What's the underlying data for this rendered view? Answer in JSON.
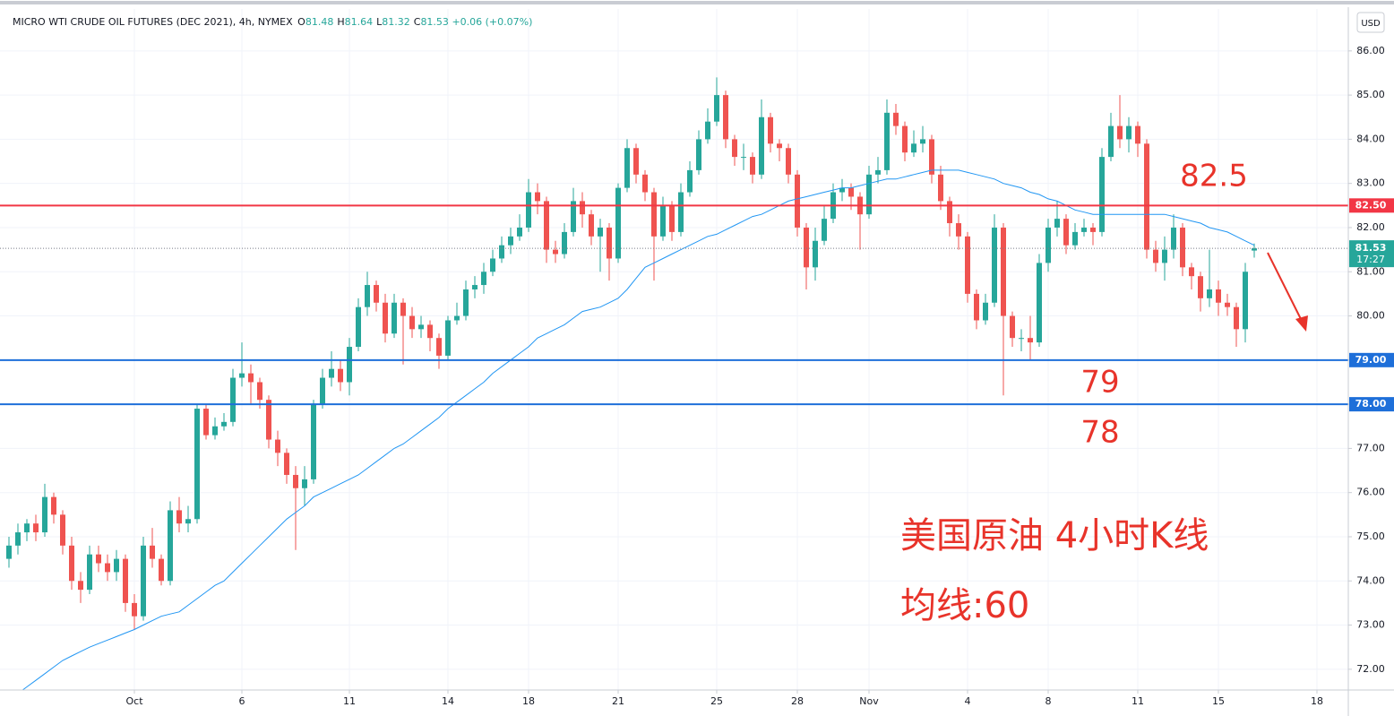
{
  "chart_data": {
    "type": "candlestick",
    "title": "MICRO WTI CRUDE OIL FUTURES (DEC 2021), 4h, NYMEX",
    "ohlc_header": [
      {
        "label": "O",
        "value": "81.48"
      },
      {
        "label": "H",
        "value": "81.64"
      },
      {
        "label": "L",
        "value": "81.32"
      },
      {
        "label": "C",
        "value": "81.53"
      }
    ],
    "change": "+0.06 (+0.07%)",
    "currency": "USD",
    "up_color": "#26a69a",
    "down_color": "#ef5350",
    "open": [
      74.5,
      74.8,
      75.1,
      75.3,
      75.1,
      75.9,
      75.5,
      74.8,
      74.0,
      73.8,
      74.6,
      74.4,
      74.2,
      74.5,
      73.5,
      73.2,
      74.8,
      74.5,
      74.0,
      75.6,
      75.3,
      75.4,
      77.9,
      77.3,
      77.5,
      77.6,
      78.6,
      78.7,
      78.5,
      78.1,
      77.2,
      76.9,
      76.4,
      76.1,
      76.3,
      78.0,
      78.6,
      78.8,
      78.5,
      79.3,
      80.2,
      80.7,
      80.3,
      79.6,
      80.3,
      80.0,
      79.7,
      79.8,
      79.5,
      79.1,
      79.9,
      80.0,
      80.6,
      80.7,
      81.0,
      81.3,
      81.6,
      81.8,
      82.0,
      82.8,
      82.6,
      81.5,
      81.4,
      81.9,
      82.6,
      82.3,
      81.8,
      82.0,
      81.3,
      82.9,
      83.8,
      83.2,
      82.8,
      81.8,
      82.5,
      81.9,
      82.8,
      83.3,
      84.0,
      84.4,
      85.0,
      84.0,
      83.6,
      83.6,
      83.2,
      84.5,
      83.9,
      83.8,
      83.2,
      82.0,
      81.1,
      81.7,
      82.2,
      82.8,
      82.9,
      82.7,
      82.3,
      83.2,
      83.3,
      84.6,
      84.3,
      83.7,
      83.9,
      84.0,
      83.2,
      82.6,
      82.1,
      81.8,
      80.5,
      79.9,
      80.3,
      82.0,
      80.0,
      79.5,
      79.5,
      79.4,
      81.2,
      82.0,
      82.2,
      81.6,
      81.9,
      82.0,
      81.9,
      83.6,
      84.3,
      84.0,
      84.3,
      83.9,
      81.5,
      81.2,
      81.5,
      82.0,
      81.1,
      80.9,
      80.4,
      80.6,
      80.3,
      80.2,
      79.7,
      81.48
    ],
    "close": [
      74.8,
      75.1,
      75.3,
      75.1,
      75.9,
      75.5,
      74.8,
      74.0,
      73.8,
      74.6,
      74.4,
      74.2,
      74.5,
      73.5,
      73.2,
      74.8,
      74.5,
      74.0,
      75.6,
      75.3,
      75.4,
      77.9,
      77.3,
      77.5,
      77.6,
      78.6,
      78.7,
      78.5,
      78.1,
      77.2,
      76.9,
      76.4,
      76.1,
      76.3,
      78.0,
      78.6,
      78.8,
      78.5,
      79.3,
      80.2,
      80.7,
      80.3,
      79.6,
      80.3,
      80.0,
      79.7,
      79.8,
      79.5,
      79.1,
      79.9,
      80.0,
      80.6,
      80.7,
      81.0,
      81.3,
      81.6,
      81.8,
      82.0,
      82.8,
      82.6,
      81.5,
      81.4,
      81.9,
      82.6,
      82.3,
      81.8,
      82.0,
      81.3,
      82.9,
      83.8,
      83.2,
      82.8,
      81.8,
      82.5,
      81.9,
      82.8,
      83.3,
      84.0,
      84.4,
      85.0,
      84.0,
      83.6,
      83.6,
      83.2,
      84.5,
      83.9,
      83.8,
      83.2,
      82.0,
      81.1,
      81.7,
      82.2,
      82.8,
      82.9,
      82.7,
      82.3,
      83.2,
      83.3,
      84.6,
      84.3,
      83.7,
      83.9,
      84.0,
      83.2,
      82.6,
      82.1,
      81.8,
      80.5,
      79.9,
      80.3,
      82.0,
      80.0,
      79.5,
      79.5,
      79.4,
      81.2,
      82.0,
      82.2,
      81.6,
      81.9,
      82.0,
      81.9,
      83.6,
      84.3,
      84.0,
      84.3,
      83.9,
      81.5,
      81.2,
      81.5,
      82.0,
      81.1,
      80.9,
      80.4,
      80.6,
      80.3,
      80.2,
      79.7,
      81.0,
      81.53
    ],
    "high": [
      75.0,
      75.3,
      75.4,
      75.5,
      76.2,
      76.0,
      75.6,
      75.0,
      74.2,
      74.8,
      74.8,
      74.6,
      74.7,
      74.6,
      73.7,
      75.0,
      75.2,
      74.6,
      75.8,
      75.9,
      75.7,
      78.0,
      78.0,
      77.7,
      77.8,
      78.8,
      79.4,
      78.9,
      78.6,
      78.2,
      77.4,
      77.0,
      76.6,
      76.6,
      78.1,
      78.8,
      79.2,
      79.0,
      79.5,
      80.4,
      81.0,
      80.8,
      80.5,
      80.5,
      80.4,
      80.2,
      80.0,
      79.9,
      79.6,
      80.0,
      80.3,
      80.8,
      80.9,
      81.2,
      81.5,
      81.8,
      82.0,
      82.3,
      83.1,
      83.0,
      82.7,
      81.7,
      82.1,
      82.9,
      82.8,
      82.4,
      82.2,
      82.1,
      83.0,
      84.0,
      83.9,
      83.3,
      82.9,
      82.7,
      82.6,
      83.0,
      83.5,
      84.2,
      84.7,
      85.4,
      85.1,
      84.1,
      83.9,
      83.7,
      84.9,
      84.6,
      84.0,
      83.9,
      83.3,
      82.1,
      82.0,
      82.5,
      83.0,
      83.1,
      83.0,
      82.8,
      83.4,
      83.6,
      84.9,
      84.8,
      84.4,
      84.2,
      84.3,
      84.1,
      83.4,
      82.7,
      82.3,
      81.9,
      80.6,
      80.5,
      82.3,
      82.1,
      80.1,
      79.7,
      80.0,
      81.4,
      82.2,
      82.6,
      82.3,
      82.1,
      82.2,
      82.1,
      83.8,
      84.6,
      85.0,
      84.5,
      84.4,
      84.0,
      81.7,
      81.8,
      82.3,
      82.1,
      81.2,
      81.0,
      81.5,
      80.8,
      80.5,
      80.3,
      81.2,
      81.64
    ],
    "low": [
      74.3,
      74.6,
      74.9,
      74.9,
      75.0,
      75.3,
      74.6,
      73.8,
      73.5,
      73.7,
      74.2,
      74.0,
      74.0,
      73.3,
      72.9,
      73.1,
      74.3,
      73.9,
      73.9,
      75.1,
      75.1,
      75.3,
      77.2,
      77.2,
      77.4,
      77.5,
      78.4,
      78.0,
      77.9,
      77.0,
      76.6,
      76.2,
      74.7,
      75.7,
      76.2,
      77.9,
      78.4,
      78.3,
      78.2,
      79.2,
      80.0,
      80.1,
      79.4,
      79.5,
      78.9,
      79.5,
      79.5,
      79.2,
      78.8,
      79.0,
      79.8,
      79.9,
      80.4,
      80.5,
      80.9,
      81.2,
      81.4,
      81.7,
      81.9,
      82.3,
      81.2,
      81.2,
      81.3,
      81.8,
      82.0,
      81.6,
      81.0,
      80.8,
      81.2,
      82.8,
      83.0,
      82.6,
      80.8,
      81.7,
      81.7,
      81.8,
      82.7,
      83.2,
      83.9,
      84.3,
      83.8,
      83.4,
      83.3,
      83.0,
      83.1,
      83.7,
      83.5,
      83.0,
      81.8,
      80.6,
      80.8,
      81.6,
      82.1,
      82.6,
      82.4,
      81.5,
      82.2,
      83.0,
      83.2,
      84.1,
      83.5,
      83.6,
      83.7,
      83.0,
      82.4,
      81.8,
      81.5,
      80.3,
      79.7,
      79.8,
      80.2,
      78.2,
      79.3,
      79.2,
      79.0,
      79.3,
      81.0,
      81.8,
      81.4,
      81.5,
      81.8,
      81.6,
      81.8,
      83.5,
      83.8,
      83.7,
      83.6,
      81.3,
      81.0,
      80.8,
      81.3,
      80.9,
      80.6,
      80.1,
      80.2,
      80.0,
      80.0,
      79.3,
      79.4,
      81.32
    ],
    "ma_values": [
      71.3,
      71.45,
      71.6,
      71.75,
      71.9,
      72.05,
      72.2,
      72.3,
      72.4,
      72.5,
      72.58,
      72.66,
      72.74,
      72.82,
      72.9,
      73.0,
      73.1,
      73.2,
      73.25,
      73.3,
      73.45,
      73.6,
      73.75,
      73.9,
      74.0,
      74.2,
      74.4,
      74.6,
      74.8,
      75.0,
      75.2,
      75.4,
      75.55,
      75.7,
      75.9,
      76.0,
      76.1,
      76.2,
      76.3,
      76.4,
      76.55,
      76.7,
      76.85,
      77.0,
      77.1,
      77.25,
      77.4,
      77.55,
      77.7,
      77.9,
      78.05,
      78.2,
      78.35,
      78.5,
      78.7,
      78.85,
      79.0,
      79.15,
      79.3,
      79.5,
      79.6,
      79.7,
      79.8,
      79.95,
      80.1,
      80.15,
      80.2,
      80.3,
      80.4,
      80.6,
      80.85,
      81.1,
      81.2,
      81.3,
      81.4,
      81.5,
      81.6,
      81.7,
      81.8,
      81.85,
      81.95,
      82.05,
      82.15,
      82.25,
      82.3,
      82.4,
      82.5,
      82.6,
      82.65,
      82.7,
      82.75,
      82.8,
      82.85,
      82.9,
      82.9,
      82.95,
      83.0,
      83.05,
      83.1,
      83.1,
      83.15,
      83.2,
      83.25,
      83.3,
      83.3,
      83.3,
      83.3,
      83.25,
      83.2,
      83.15,
      83.1,
      83.0,
      82.95,
      82.9,
      82.8,
      82.75,
      82.65,
      82.6,
      82.5,
      82.4,
      82.35,
      82.3,
      82.3,
      82.3,
      82.3,
      82.3,
      82.3,
      82.3,
      82.3,
      82.3,
      82.25,
      82.2,
      82.15,
      82.1,
      82.0,
      81.95,
      81.9,
      81.8,
      81.7,
      81.6
    ],
    "ma_color": "#2196f3",
    "xlim": [
      -1,
      149.5
    ],
    "xticks": [
      {
        "value": 14,
        "label": "Oct"
      },
      {
        "value": 26,
        "label": "6"
      },
      {
        "value": 38,
        "label": "11"
      },
      {
        "value": 49,
        "label": "14"
      },
      {
        "value": 58,
        "label": "18"
      },
      {
        "value": 68,
        "label": "21"
      },
      {
        "value": 79,
        "label": "25"
      },
      {
        "value": 88,
        "label": "28"
      },
      {
        "value": 96,
        "label": "Nov"
      },
      {
        "value": 107,
        "label": "4"
      },
      {
        "value": 116,
        "label": "8"
      },
      {
        "value": 126,
        "label": "11"
      },
      {
        "value": 135,
        "label": "15"
      },
      {
        "value": 146,
        "label": "18"
      }
    ],
    "ylim": [
      71.53,
      86.95
    ],
    "yticks": [
      {
        "value": 72,
        "label": "72.00"
      },
      {
        "value": 73,
        "label": "73.00"
      },
      {
        "value": 74,
        "label": "74.00"
      },
      {
        "value": 75,
        "label": "75.00"
      },
      {
        "value": 76,
        "label": "76.00"
      },
      {
        "value": 77,
        "label": "77.00"
      },
      {
        "value": 78,
        "label": "78.00"
      },
      {
        "value": 79,
        "label": "79.00"
      },
      {
        "value": 80,
        "label": "80.00"
      },
      {
        "value": 81,
        "label": "81.00"
      },
      {
        "value": 82,
        "label": "82.00"
      },
      {
        "value": 83,
        "label": "83.00"
      },
      {
        "value": 84,
        "label": "84.00"
      },
      {
        "value": 85,
        "label": "85.00"
      },
      {
        "value": 86,
        "label": "86.00"
      }
    ],
    "grid": true,
    "hlines": [
      {
        "value": 82.5,
        "label": "82.50",
        "color": "#f23645"
      },
      {
        "value": 79,
        "label": "79.00",
        "color": "#1e6fd9"
      },
      {
        "value": 78,
        "label": "78.00",
        "color": "#1e6fd9"
      }
    ],
    "last_price": 81.53,
    "countdown": "17:27",
    "annotations": [
      "82.5",
      "79",
      "78",
      "美国原油 4小时K线",
      "均线:60"
    ],
    "annotation_color": "#e8332a"
  }
}
